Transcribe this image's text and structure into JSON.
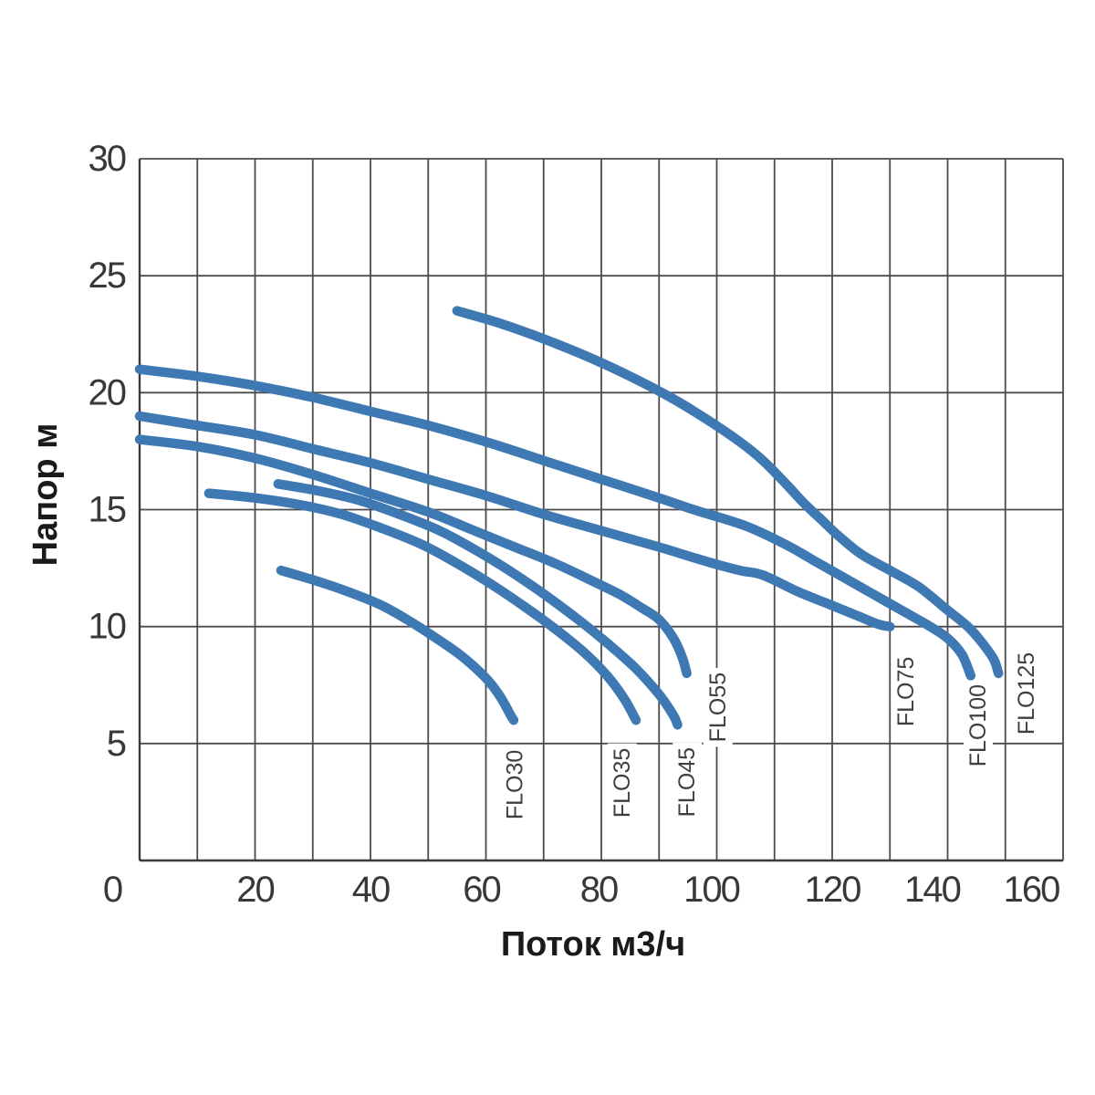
{
  "chart_data": {
    "type": "line",
    "title": "",
    "xlabel": "Поток м3/ч",
    "ylabel": "Напор м",
    "xlim": [
      0,
      160
    ],
    "ylim": [
      0,
      30
    ],
    "x_tick_labels": [
      "0",
      "20",
      "40",
      "60",
      "80",
      "100",
      "120",
      "140",
      "160"
    ],
    "x_tick_values": [
      0,
      20,
      40,
      60,
      80,
      100,
      120,
      140,
      160
    ],
    "y_tick_labels": [
      "5",
      "10",
      "15",
      "20",
      "25",
      "30"
    ],
    "y_tick_values": [
      5,
      10,
      15,
      20,
      25,
      30
    ],
    "x_grid_step": 10,
    "y_grid_step": 5,
    "grid": "on",
    "legend_position": "rotated labels at curve ends",
    "colors": {
      "curve": "#3e79b4",
      "grid": "#4b4b4b",
      "axis_frame": "#3a3a3a",
      "tick_text": "#383838",
      "curve_label_text": "#3f3f3f",
      "background": "#ffffff"
    },
    "series": [
      {
        "name": "FLO30",
        "label_pos": [
          65.1,
          3.24
        ],
        "points": [
          [
            24.5,
            12.4
          ],
          [
            30,
            12.0
          ],
          [
            36,
            11.5
          ],
          [
            42,
            10.9
          ],
          [
            47,
            10.2
          ],
          [
            52,
            9.4
          ],
          [
            56,
            8.7
          ],
          [
            60,
            7.8
          ],
          [
            62.5,
            7.0
          ],
          [
            64.3,
            6.2
          ],
          [
            64.8,
            6.0
          ]
        ]
      },
      {
        "name": "FLO35",
        "label_pos": [
          83.6,
          3.32
        ],
        "points": [
          [
            12,
            15.7
          ],
          [
            20,
            15.5
          ],
          [
            28,
            15.2
          ],
          [
            35,
            14.8
          ],
          [
            42,
            14.2
          ],
          [
            49,
            13.5
          ],
          [
            55,
            12.7
          ],
          [
            61,
            11.8
          ],
          [
            67,
            10.8
          ],
          [
            72,
            9.9
          ],
          [
            77,
            8.9
          ],
          [
            81,
            7.9
          ],
          [
            84,
            6.9
          ],
          [
            86,
            6.0
          ]
        ]
      },
      {
        "name": "FLO45",
        "label_pos": [
          94.9,
          3.35
        ],
        "points": [
          [
            24,
            16.1
          ],
          [
            31,
            15.8
          ],
          [
            38,
            15.4
          ],
          [
            45,
            14.8
          ],
          [
            52,
            14.1
          ],
          [
            58,
            13.3
          ],
          [
            64,
            12.4
          ],
          [
            70,
            11.4
          ],
          [
            76,
            10.3
          ],
          [
            81,
            9.3
          ],
          [
            86,
            8.2
          ],
          [
            90,
            7.1
          ],
          [
            92.5,
            6.2
          ],
          [
            93.2,
            5.8
          ]
        ]
      },
      {
        "name": "FLO55",
        "label_pos": [
          100.2,
          6.55
        ],
        "points": [
          [
            0,
            18
          ],
          [
            10,
            17.7
          ],
          [
            20,
            17.2
          ],
          [
            30,
            16.5
          ],
          [
            40,
            15.7
          ],
          [
            50,
            14.9
          ],
          [
            58,
            14.1
          ],
          [
            65,
            13.4
          ],
          [
            72,
            12.7
          ],
          [
            78,
            12.0
          ],
          [
            83,
            11.4
          ],
          [
            87,
            10.8
          ],
          [
            90,
            10.3
          ],
          [
            92.5,
            9.5
          ],
          [
            94,
            8.7
          ],
          [
            94.8,
            8.0
          ]
        ]
      },
      {
        "name": "FLO75",
        "label_pos": [
          132.8,
          7.22
        ],
        "points": [
          [
            0,
            19
          ],
          [
            10,
            18.6
          ],
          [
            20,
            18.2
          ],
          [
            30,
            17.6
          ],
          [
            40,
            17.0
          ],
          [
            50,
            16.3
          ],
          [
            60,
            15.6
          ],
          [
            70,
            14.8
          ],
          [
            80,
            14.1
          ],
          [
            90,
            13.4
          ],
          [
            98,
            12.8
          ],
          [
            104,
            12.4
          ],
          [
            108,
            12.2
          ],
          [
            114,
            11.5
          ],
          [
            119,
            11.0
          ],
          [
            124,
            10.5
          ],
          [
            128,
            10.1
          ],
          [
            130,
            10.0
          ]
        ]
      },
      {
        "name": "FLO100",
        "label_pos": [
          145.3,
          5.77
        ],
        "points": [
          [
            0,
            21
          ],
          [
            10,
            20.7
          ],
          [
            20,
            20.3
          ],
          [
            30,
            19.8
          ],
          [
            40,
            19.2
          ],
          [
            50,
            18.6
          ],
          [
            60,
            17.9
          ],
          [
            70,
            17.1
          ],
          [
            80,
            16.3
          ],
          [
            90,
            15.5
          ],
          [
            96,
            15.0
          ],
          [
            105,
            14.3
          ],
          [
            112,
            13.5
          ],
          [
            117,
            12.8
          ],
          [
            122,
            12.1
          ],
          [
            127,
            11.4
          ],
          [
            132,
            10.7
          ],
          [
            137,
            10.0
          ],
          [
            140,
            9.5
          ],
          [
            142.5,
            8.8
          ],
          [
            144,
            7.9
          ]
        ]
      },
      {
        "name": "FLO125",
        "label_pos": [
          153.7,
          7.14
        ],
        "points": [
          [
            55,
            23.5
          ],
          [
            62,
            23.0
          ],
          [
            70,
            22.3
          ],
          [
            78,
            21.5
          ],
          [
            85,
            20.7
          ],
          [
            92,
            19.8
          ],
          [
            98,
            18.9
          ],
          [
            104,
            17.9
          ],
          [
            108,
            17.1
          ],
          [
            112,
            16.1
          ],
          [
            115,
            15.3
          ],
          [
            118,
            14.6
          ],
          [
            121,
            13.9
          ],
          [
            125,
            13.1
          ],
          [
            130,
            12.4
          ],
          [
            135,
            11.7
          ],
          [
            140,
            10.7
          ],
          [
            143.5,
            10.0
          ],
          [
            146,
            9.3
          ],
          [
            148,
            8.6
          ],
          [
            148.8,
            8.0
          ]
        ]
      }
    ]
  }
}
